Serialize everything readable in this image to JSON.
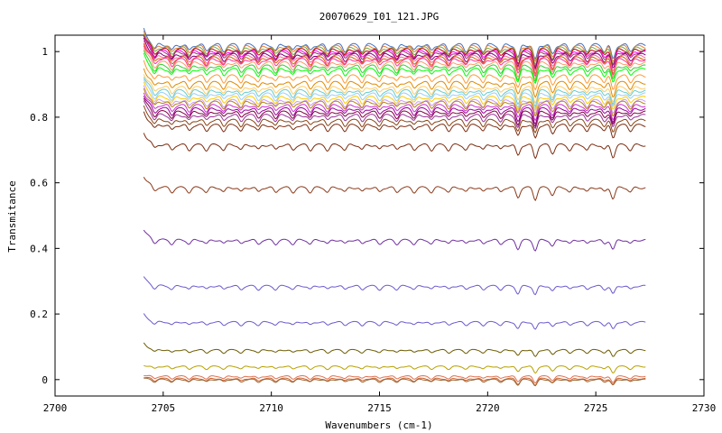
{
  "chart_data": {
    "type": "line",
    "title": "20070629_I01_121.JPG",
    "xlabel": "Wavenumbers (cm-1)",
    "ylabel": "Transmitance",
    "xlim": [
      2700,
      2730
    ],
    "ylim": [
      -0.05,
      1.05
    ],
    "x_ticks": [
      2700,
      2705,
      2710,
      2715,
      2720,
      2725,
      2730
    ],
    "y_ticks": [
      0,
      0.2,
      0.4,
      0.6,
      0.8,
      1
    ],
    "x_tick_labels": [
      "2700",
      "2705",
      "2710",
      "2715",
      "2720",
      "2725",
      "2730"
    ],
    "y_tick_labels": [
      "0",
      "0.2",
      "0.4",
      "0.6",
      "0.8",
      "1"
    ],
    "grid": false,
    "legend": "none",
    "x_range_of_data": [
      2704.1,
      2727.3
    ],
    "series": [
      {
        "color": "#4472c4",
        "level": 1.02
      },
      {
        "color": "#ed7d31",
        "level": 1.015
      },
      {
        "color": "#70ad47",
        "level": 1.01
      },
      {
        "color": "#c00000",
        "level": 1.005
      },
      {
        "color": "#ff00ff",
        "level": 1.0
      },
      {
        "color": "#993366",
        "level": 0.997
      },
      {
        "color": "#800080",
        "level": 0.99
      },
      {
        "color": "#ff6699",
        "level": 0.985
      },
      {
        "color": "#cc6600",
        "level": 0.98
      },
      {
        "color": "#ff3399",
        "level": 0.975
      },
      {
        "color": "#ff9966",
        "level": 0.965
      },
      {
        "color": "#33cc33",
        "level": 0.955
      },
      {
        "color": "#00ff00",
        "level": 0.945
      },
      {
        "color": "#ff9933",
        "level": 0.925
      },
      {
        "color": "#e08a00",
        "level": 0.905
      },
      {
        "color": "#ffcc66",
        "level": 0.89
      },
      {
        "color": "#66cccc",
        "level": 0.88
      },
      {
        "color": "#99ccff",
        "level": 0.87
      },
      {
        "color": "#ffcc00",
        "level": 0.86
      },
      {
        "color": "#cc99ff",
        "level": 0.85
      },
      {
        "color": "#b8860b",
        "level": 0.845
      },
      {
        "color": "#cc33cc",
        "level": 0.835
      },
      {
        "color": "#990099",
        "level": 0.825
      },
      {
        "color": "#800040",
        "level": 0.815
      },
      {
        "color": "#993399",
        "level": 0.805
      },
      {
        "color": "#8b4513",
        "level": 0.79
      },
      {
        "color": "#7b2d12",
        "level": 0.775
      },
      {
        "color": "#7b2d12",
        "level": 0.715
      },
      {
        "color": "#8b3a1a",
        "level": 0.585
      },
      {
        "color": "#7030a0",
        "level": 0.425
      },
      {
        "color": "#6a5acd",
        "level": 0.285
      },
      {
        "color": "#6a5acd",
        "level": 0.175
      },
      {
        "color": "#6b5b00",
        "level": 0.09
      },
      {
        "color": "#b8a000",
        "level": 0.04
      },
      {
        "color": "#e07050",
        "level": 0.01
      },
      {
        "color": "#cc6633",
        "level": 0.003
      },
      {
        "color": "#996633",
        "level": 0.0
      }
    ]
  }
}
